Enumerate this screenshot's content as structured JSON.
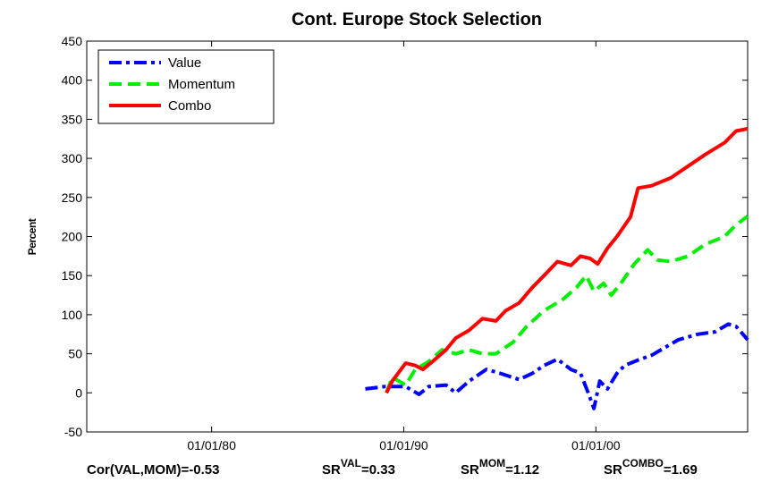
{
  "chart_data": {
    "type": "line",
    "title": "Cont. Europe Stock Selection",
    "y_label": "Percent",
    "xlim": [
      1973.5,
      2007.9
    ],
    "xticks": [
      {
        "value": 1980,
        "label": "01/01/80"
      },
      {
        "value": 1990,
        "label": "01/01/90"
      },
      {
        "value": 2000,
        "label": "01/01/00"
      }
    ],
    "ylim": [
      -50,
      450
    ],
    "yticks": [
      -50,
      0,
      50,
      100,
      150,
      200,
      250,
      300,
      350,
      400,
      450
    ],
    "grid": false,
    "legend": "upper-left",
    "series": [
      {
        "name": "Value",
        "color": "#0000ff",
        "linestyle": "dashdot",
        "x": [
          1988.0,
          1989.0,
          1990.1,
          1990.8,
          1991.3,
          1992.2,
          1992.7,
          1993.4,
          1994.3,
          1995.0,
          1996.0,
          1996.7,
          1997.3,
          1998.0,
          1998.7,
          1999.2,
          1999.6,
          1999.9,
          2000.2,
          2000.6,
          2001.1,
          2001.5,
          2002.2,
          2002.9,
          2003.6,
          2004.3,
          2005.3,
          2006.2,
          2006.9,
          2007.3,
          2007.9
        ],
        "values": [
          5,
          8,
          8,
          -2,
          8,
          10,
          0,
          15,
          30,
          25,
          17,
          25,
          35,
          43,
          30,
          25,
          0,
          -20,
          15,
          5,
          25,
          35,
          42,
          48,
          58,
          68,
          75,
          78,
          88,
          85,
          68
        ]
      },
      {
        "name": "Momentum",
        "color": "#00ee00",
        "linestyle": "dashed",
        "x": [
          1989.1,
          1989.4,
          1990.1,
          1990.6,
          1991.3,
          1992.0,
          1992.7,
          1993.4,
          1994.1,
          1994.8,
          1995.7,
          1996.4,
          1997.3,
          1998.3,
          1999.0,
          1999.5,
          1999.9,
          2000.4,
          2000.8,
          2001.3,
          2002.0,
          2002.7,
          2003.2,
          2003.9,
          2004.8,
          2005.7,
          2006.7,
          2007.3,
          2007.9
        ],
        "values": [
          0,
          20,
          10,
          30,
          40,
          55,
          50,
          55,
          50,
          50,
          65,
          85,
          105,
          120,
          135,
          150,
          130,
          140,
          125,
          140,
          165,
          183,
          170,
          168,
          175,
          190,
          200,
          215,
          226
        ]
      },
      {
        "name": "Combo",
        "color": "#ff0000",
        "linestyle": "solid",
        "x": [
          1989.1,
          1989.4,
          1990.1,
          1990.6,
          1991.0,
          1991.5,
          1992.2,
          1992.7,
          1993.4,
          1994.1,
          1994.8,
          1995.3,
          1996.0,
          1996.7,
          1997.3,
          1998.0,
          1998.7,
          1999.2,
          1999.7,
          2000.1,
          2000.6,
          2001.1,
          2001.8,
          2002.2,
          2002.9,
          2003.9,
          2004.8,
          2005.7,
          2006.7,
          2007.3,
          2007.9
        ],
        "values": [
          0,
          15,
          38,
          35,
          30,
          40,
          55,
          70,
          80,
          95,
          92,
          105,
          115,
          135,
          150,
          168,
          163,
          175,
          172,
          165,
          185,
          200,
          225,
          262,
          265,
          275,
          290,
          305,
          320,
          335,
          338
        ]
      }
    ],
    "footer": [
      {
        "base": "Cor(VAL,MOM)=-0.53"
      },
      {
        "base": "SR",
        "sup": "VAL",
        "rest": "=0.33"
      },
      {
        "base": "SR",
        "sup": "MOM",
        "rest": "=1.12"
      },
      {
        "base": "SR",
        "sup": "COMBO",
        "rest": "=1.69"
      }
    ]
  }
}
